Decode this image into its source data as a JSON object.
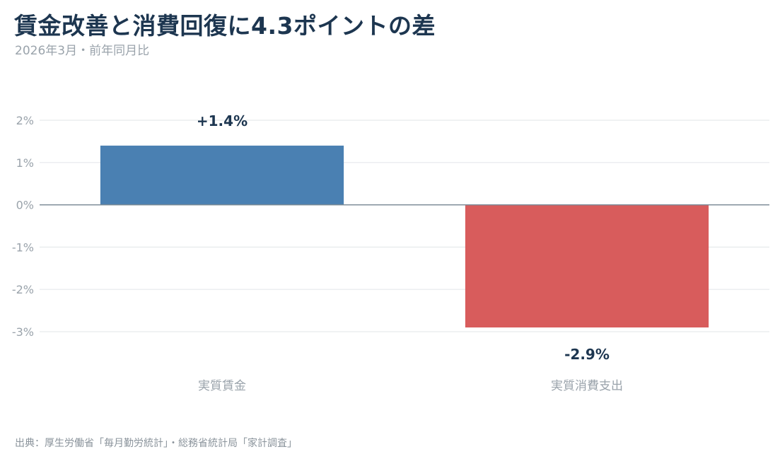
{
  "title": "賃金改善と消費回復に4.3ポイントの差",
  "subtitle": "2026年3月・前年同月比",
  "source": "出典：厚生労働省「毎月勤労統計」・総務省統計局「家計調査」",
  "chart_data": {
    "type": "bar",
    "categories": [
      "実質賃金",
      "実質消費支出"
    ],
    "values": [
      1.4,
      -2.9
    ],
    "value_labels": [
      "+1.4%",
      "-2.9%"
    ],
    "colors": [
      "#4a80b2",
      "#d85c5c"
    ],
    "ylim": [
      -3,
      2
    ],
    "yticks": [
      2,
      1,
      0,
      -1,
      -2,
      -3
    ],
    "ytick_labels": [
      "2%",
      "1%",
      "0%",
      "-1%",
      "-2%",
      "-3%"
    ],
    "grid": true,
    "legend": "none",
    "xlabel": "",
    "ylabel": ""
  }
}
